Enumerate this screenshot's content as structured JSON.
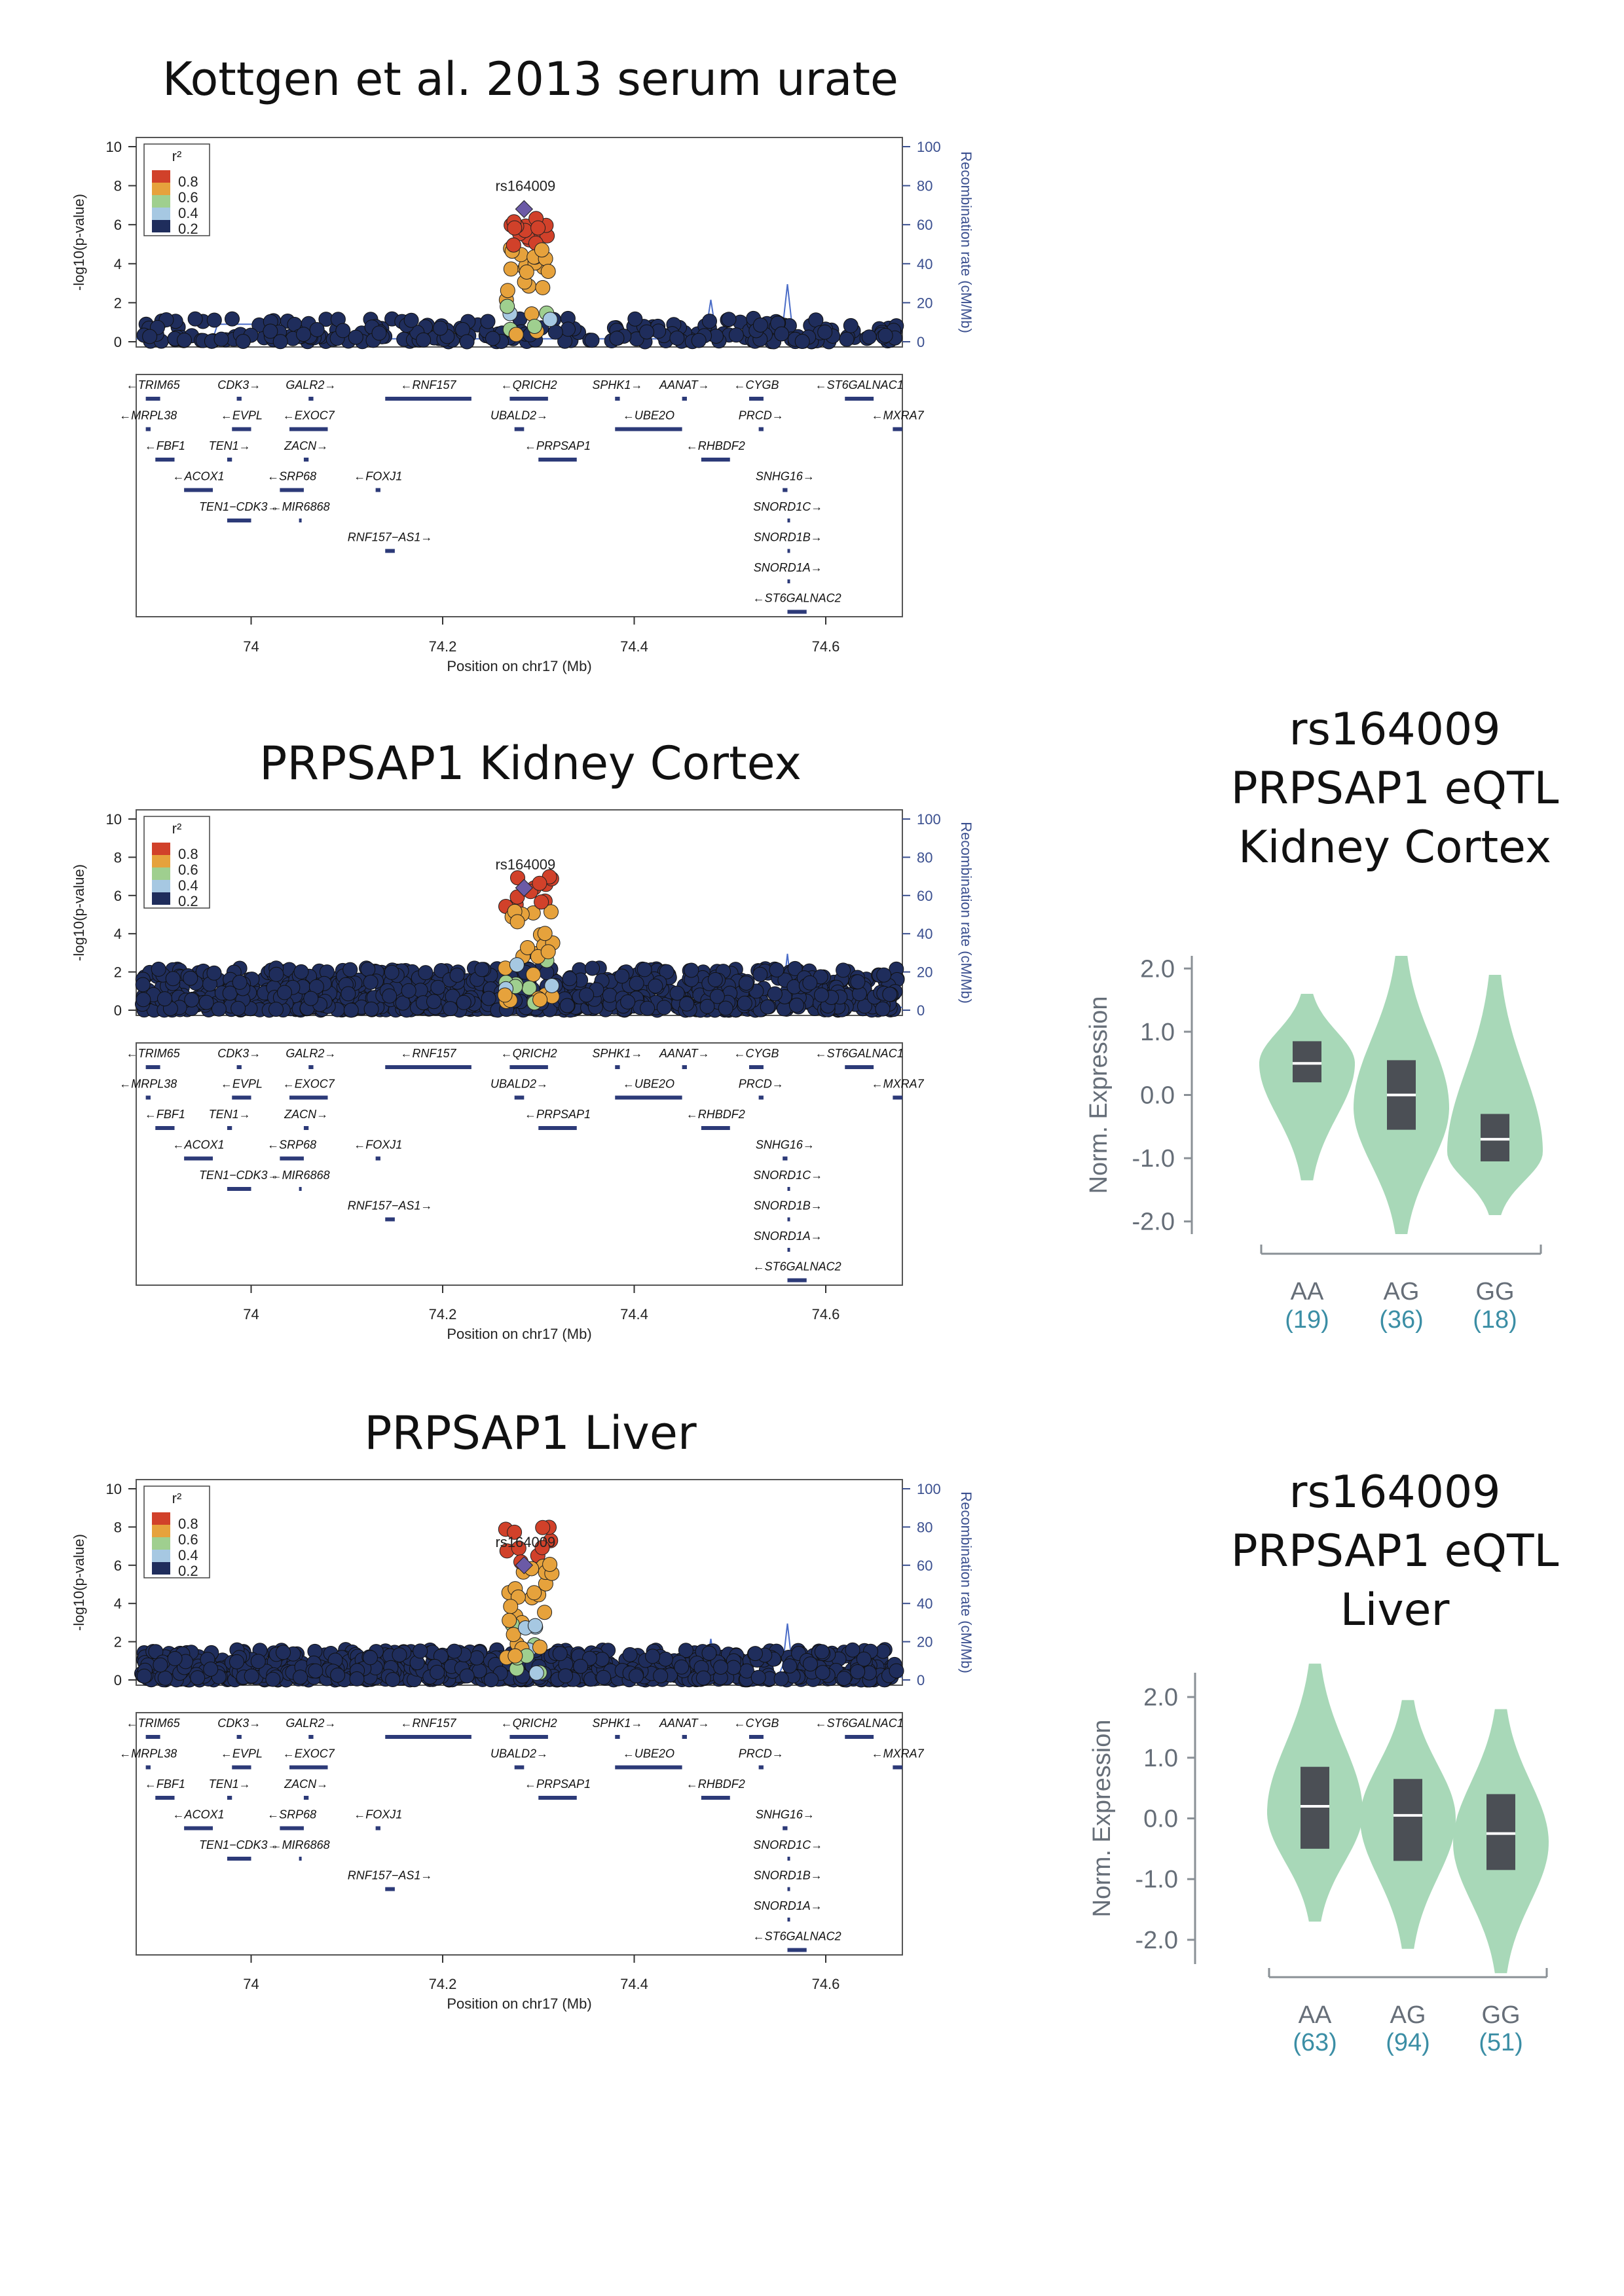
{
  "titles": {
    "lz1": "Kottgen et al. 2013 serum urate",
    "lz2": "PRPSAP1 Kidney Cortex",
    "lz3": "PRPSAP1 Liver",
    "v1": [
      "rs164009",
      "PRPSAP1 eQTL",
      "Kidney Cortex"
    ],
    "v2": [
      "rs164009",
      "PRPSAP1 eQTL",
      "Liver"
    ]
  },
  "colors": {
    "r2_0": "#1f2d5c",
    "r2_1": "#a6c8e2",
    "r2_2": "#9fcf8f",
    "r2_3": "#e6a23c",
    "r2_4": "#d1412a",
    "lead": "#6b5aa6",
    "recomb": "#4a6cc7",
    "violin": "#a8d8b8",
    "box": "#4b4f55"
  },
  "chart_data": [
    {
      "type": "scatter",
      "title": "Kottgen et al. 2013 serum urate",
      "lead_snp": "rs164009",
      "xlabel": "Position on chr17 (Mb)",
      "ylabel": "-log10(p-value)",
      "y2label": "Recombination rate (cM/Mb)",
      "xlim": [
        73.88,
        74.68
      ],
      "ylim": [
        0,
        10
      ],
      "y2lim": [
        0,
        100
      ],
      "xticks": [
        74,
        74.2,
        74.4,
        74.6
      ],
      "xtick_labels": [
        "74",
        "74.2",
        "74.4",
        "74.6"
      ],
      "yticks": [
        0,
        2,
        4,
        6,
        8,
        10
      ],
      "y2ticks": [
        0,
        20,
        40,
        60,
        80,
        100
      ],
      "legend_title": "r2",
      "legend_labels": [
        "0.8",
        "0.6",
        "0.4",
        "0.2"
      ],
      "lead_pos": 74.285,
      "lead_value": 6.8,
      "peak_max": 6.5,
      "bg_level": 1.2,
      "n_points": 260,
      "recomb_peaks": [
        [
          74.48,
          20
        ],
        [
          74.56,
          28
        ]
      ]
    },
    {
      "type": "scatter",
      "title": "PRPSAP1 Kidney Cortex",
      "lead_snp": "rs164009",
      "xlabel": "Position on chr17 (Mb)",
      "ylabel": "-log10(p-value)",
      "y2label": "Recombination rate (cM/Mb)",
      "xlim": [
        73.88,
        74.68
      ],
      "ylim": [
        0,
        10
      ],
      "y2lim": [
        0,
        100
      ],
      "xticks": [
        74,
        74.2,
        74.4,
        74.6
      ],
      "xtick_labels": [
        "74",
        "74.2",
        "74.4",
        "74.6"
      ],
      "yticks": [
        0,
        2,
        4,
        6,
        8,
        10
      ],
      "y2ticks": [
        0,
        20,
        40,
        60,
        80,
        100
      ],
      "legend_title": "r2",
      "legend_labels": [
        "0.8",
        "0.6",
        "0.4",
        "0.2"
      ],
      "lead_pos": 74.285,
      "lead_value": 6.4,
      "peak_max": 7.0,
      "bg_level": 2.2,
      "n_points": 900,
      "recomb_peaks": [
        [
          74.48,
          20
        ],
        [
          74.56,
          28
        ]
      ]
    },
    {
      "type": "scatter",
      "title": "PRPSAP1 Liver",
      "lead_snp": "rs164009",
      "xlabel": "Position on chr17 (Mb)",
      "ylabel": "-log10(p-value)",
      "y2label": "Recombination rate (cM/Mb)",
      "xlim": [
        73.88,
        74.68
      ],
      "ylim": [
        0,
        10
      ],
      "y2lim": [
        0,
        100
      ],
      "xticks": [
        74,
        74.2,
        74.4,
        74.6
      ],
      "xtick_labels": [
        "74",
        "74.2",
        "74.4",
        "74.6"
      ],
      "yticks": [
        0,
        2,
        4,
        6,
        8,
        10
      ],
      "y2ticks": [
        0,
        20,
        40,
        60,
        80,
        100
      ],
      "legend_title": "r2",
      "legend_labels": [
        "0.8",
        "0.6",
        "0.4",
        "0.2"
      ],
      "lead_pos": 74.285,
      "lead_value": 6.0,
      "peak_max": 8.0,
      "bg_level": 1.6,
      "n_points": 800,
      "recomb_peaks": [
        [
          74.48,
          20
        ],
        [
          74.56,
          28
        ]
      ]
    },
    {
      "type": "violin",
      "title": "rs164009 PRPSAP1 eQTL Kidney Cortex",
      "ylabel": "Norm. Expression",
      "yticks": [
        2.0,
        1.0,
        0.0,
        -1.0,
        -2.0
      ],
      "ytick_labels": [
        "2.0",
        "1.0",
        "0.0",
        "-1.0",
        "-2.0"
      ],
      "ylim": [
        -2.2,
        2.2
      ],
      "categories": [
        "AA",
        "AG",
        "GG"
      ],
      "counts": [
        "(19)",
        "(36)",
        "(18)"
      ],
      "ranges": [
        [
          -1.35,
          1.6
        ],
        [
          -2.2,
          2.2
        ],
        [
          -1.9,
          1.9
        ]
      ],
      "medians": [
        0.5,
        0.0,
        -0.7
      ],
      "q1": [
        0.2,
        -0.55,
        -1.05
      ],
      "q3": [
        0.85,
        0.55,
        -0.3
      ],
      "modes": [
        0.5,
        -0.2,
        -0.9
      ]
    },
    {
      "type": "violin",
      "title": "rs164009 PRPSAP1 eQTL Liver",
      "ylabel": "Norm. Expression",
      "yticks": [
        2.0,
        1.0,
        0.0,
        -1.0,
        -2.0
      ],
      "ytick_labels": [
        "2.0",
        "1.0",
        "0.0",
        "-1.0",
        "-2.0"
      ],
      "ylim": [
        -2.4,
        2.4
      ],
      "categories": [
        "AA",
        "AG",
        "GG"
      ],
      "counts": [
        "(63)",
        "(94)",
        "(51)"
      ],
      "ranges": [
        [
          -1.7,
          2.55
        ],
        [
          -2.15,
          1.95
        ],
        [
          -2.55,
          1.8
        ]
      ],
      "medians": [
        0.2,
        0.05,
        -0.25
      ],
      "q1": [
        -0.5,
        -0.7,
        -0.85
      ],
      "q3": [
        0.85,
        0.65,
        0.4
      ],
      "modes": [
        0.1,
        0.0,
        -0.4
      ]
    }
  ],
  "genes": [
    {
      "name": "TRIM65",
      "label": "←TRIM65",
      "row": 0,
      "s": 73.89,
      "e": 73.905
    },
    {
      "name": "CDK3",
      "label": "CDK3→",
      "row": 0,
      "s": 73.985,
      "e": 73.99
    },
    {
      "name": "GALR2",
      "label": "GALR2→",
      "row": 0,
      "s": 74.06,
      "e": 74.065
    },
    {
      "name": "RNF157",
      "label": "←RNF157",
      "row": 0,
      "s": 74.14,
      "e": 74.23
    },
    {
      "name": "QRICH2",
      "label": "←QRICH2",
      "row": 0,
      "s": 74.27,
      "e": 74.31
    },
    {
      "name": "SPHK1",
      "label": "SPHK1→",
      "row": 0,
      "s": 74.38,
      "e": 74.385
    },
    {
      "name": "AANAT",
      "label": "AANAT→",
      "row": 0,
      "s": 74.45,
      "e": 74.455
    },
    {
      "name": "CYGB",
      "label": "←CYGB",
      "row": 0,
      "s": 74.52,
      "e": 74.535
    },
    {
      "name": "ST6GALNAC1",
      "label": "←ST6GALNAC1",
      "row": 0,
      "s": 74.62,
      "e": 74.65
    },
    {
      "name": "MRPL38",
      "label": "←MRPL38",
      "row": 1,
      "s": 73.89,
      "e": 73.895
    },
    {
      "name": "EVPL",
      "label": "←EVPL",
      "row": 1,
      "s": 73.98,
      "e": 74.0
    },
    {
      "name": "EXOC7",
      "label": "←EXOC7",
      "row": 1,
      "s": 74.04,
      "e": 74.08
    },
    {
      "name": "UBALD2",
      "label": "UBALD2→",
      "row": 1,
      "s": 74.275,
      "e": 74.285
    },
    {
      "name": "UBE2O",
      "label": "←UBE2O",
      "row": 1,
      "s": 74.38,
      "e": 74.45
    },
    {
      "name": "PRCD",
      "label": "PRCD→",
      "row": 1,
      "s": 74.53,
      "e": 74.535
    },
    {
      "name": "MXRA7",
      "label": "←MXRA7",
      "row": 1,
      "s": 74.67,
      "e": 74.68
    },
    {
      "name": "FBF1",
      "label": "←FBF1",
      "row": 2,
      "s": 73.9,
      "e": 73.92
    },
    {
      "name": "TEN1",
      "label": "TEN1→",
      "row": 2,
      "s": 73.975,
      "e": 73.98
    },
    {
      "name": "ZACN",
      "label": "ZACN→",
      "row": 2,
      "s": 74.055,
      "e": 74.06
    },
    {
      "name": "PRPSAP1",
      "label": "←PRPSAP1",
      "row": 2,
      "s": 74.3,
      "e": 74.34
    },
    {
      "name": "RHBDF2",
      "label": "←RHBDF2",
      "row": 2,
      "s": 74.47,
      "e": 74.5
    },
    {
      "name": "ACOX1",
      "label": "←ACOX1",
      "row": 3,
      "s": 73.93,
      "e": 73.96
    },
    {
      "name": "SRP68",
      "label": "←SRP68",
      "row": 3,
      "s": 74.03,
      "e": 74.055
    },
    {
      "name": "FOXJ1",
      "label": "←FOXJ1",
      "row": 3,
      "s": 74.13,
      "e": 74.135
    },
    {
      "name": "SNHG16",
      "label": "SNHG16→",
      "row": 3,
      "s": 74.555,
      "e": 74.56
    },
    {
      "name": "TEN1-CDK3",
      "label": "TEN1−CDK3→",
      "row": 4,
      "s": 73.975,
      "e": 74.0
    },
    {
      "name": "MIR6868",
      "label": "←MIR6868",
      "row": 4,
      "s": 74.05,
      "e": 74.052
    },
    {
      "name": "SNORD1C",
      "label": "SNORD1C→",
      "row": 4,
      "s": 74.56,
      "e": 74.561
    },
    {
      "name": "RNF157-AS1",
      "label": "RNF157−AS1→",
      "row": 5,
      "s": 74.14,
      "e": 74.15
    },
    {
      "name": "SNORD1B",
      "label": "SNORD1B→",
      "row": 5,
      "s": 74.56,
      "e": 74.561
    },
    {
      "name": "SNORD1A",
      "label": "SNORD1A→",
      "row": 6,
      "s": 74.56,
      "e": 74.561
    },
    {
      "name": "ST6GALNAC2",
      "label": "←ST6GALNAC2",
      "row": 7,
      "s": 74.56,
      "e": 74.58
    }
  ]
}
